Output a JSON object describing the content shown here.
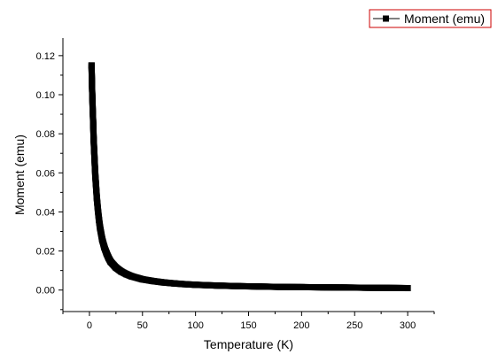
{
  "chart_data": {
    "type": "scatter",
    "title": "",
    "xlabel": "Temperature (K)",
    "ylabel": "Moment (emu)",
    "xlim": [
      -25,
      325
    ],
    "ylim": [
      -0.011,
      0.129
    ],
    "grid": false,
    "legend": {
      "placement": "top-right",
      "entries": [
        "Moment (emu)"
      ]
    },
    "x_ticks": [
      0,
      50,
      100,
      150,
      200,
      250,
      300
    ],
    "x_tick_labels": [
      "0",
      "50",
      "100",
      "150",
      "200",
      "250",
      "300"
    ],
    "y_ticks": [
      0.0,
      0.02,
      0.04,
      0.06,
      0.08,
      0.1,
      0.12
    ],
    "y_tick_labels": [
      "0.00",
      "0.02",
      "0.04",
      "0.06",
      "0.08",
      "0.10",
      "0.12"
    ],
    "series": [
      {
        "name": "Moment (emu)",
        "color": "#000000",
        "marker": "square",
        "line": true,
        "x": [
          2,
          2.5,
          3,
          3.5,
          4,
          4.5,
          5,
          5.5,
          6,
          7,
          8,
          9,
          10,
          12,
          14,
          16,
          18,
          20,
          25,
          30,
          35,
          40,
          50,
          60,
          70,
          80,
          90,
          100,
          120,
          140,
          160,
          180,
          200,
          220,
          240,
          260,
          280,
          300
        ],
        "y": [
          0.115,
          0.103,
          0.094,
          0.086,
          0.077,
          0.071,
          0.065,
          0.059,
          0.055,
          0.047,
          0.041,
          0.036,
          0.032,
          0.026,
          0.022,
          0.019,
          0.0165,
          0.0145,
          0.0115,
          0.0095,
          0.0081,
          0.007,
          0.0055,
          0.0046,
          0.0039,
          0.0034,
          0.003,
          0.0027,
          0.0023,
          0.002,
          0.0018,
          0.0016,
          0.0015,
          0.0014,
          0.0013,
          0.0012,
          0.0011,
          0.001
        ]
      }
    ]
  }
}
